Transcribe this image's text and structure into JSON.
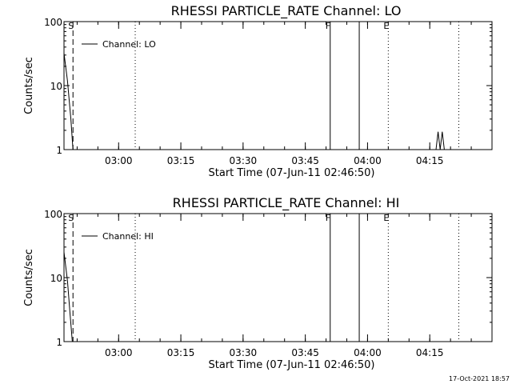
{
  "footer_stamp": "17-Oct-2021 18:57",
  "chart_data": [
    {
      "type": "line",
      "title": "RHESSI PARTICLE_RATE Channel: LO",
      "xlabel": "Start Time (07-Jun-11 02:46:50)",
      "ylabel": "Counts/sec",
      "y_scale": "log",
      "ylim": [
        1,
        100
      ],
      "y_ticks": [
        1,
        10,
        100
      ],
      "y_tick_labels": [
        "1",
        "10",
        "100"
      ],
      "xlim": [
        "02:46:50",
        "04:30:00"
      ],
      "x_ticks": [
        "03:00",
        "03:15",
        "03:30",
        "03:45",
        "04:00",
        "04:15"
      ],
      "legend": {
        "position": "top-left",
        "entries": [
          "Channel: LO"
        ]
      },
      "markers": [
        {
          "time": "02:49:00",
          "label": "S",
          "style": "dashed"
        },
        {
          "time": "03:04:00",
          "label": "",
          "style": "dotted"
        },
        {
          "time": "03:51:00",
          "label": "F",
          "style": "solid"
        },
        {
          "time": "03:58:00",
          "label": "",
          "style": "solid"
        },
        {
          "time": "04:05:00",
          "label": "E",
          "style": "dotted"
        },
        {
          "time": "04:22:00",
          "label": "",
          "style": "dotted"
        }
      ],
      "series": [
        {
          "name": "Channel: LO",
          "segments": [
            [
              {
                "x": "02:46:50",
                "y": 32
              },
              {
                "x": "02:47:40",
                "y": 12
              },
              {
                "x": "02:48:30",
                "y": 3
              },
              {
                "x": "02:49:00",
                "y": 1
              }
            ],
            [
              {
                "x": "04:16:30",
                "y": 1
              },
              {
                "x": "04:17:00",
                "y": 1.9
              },
              {
                "x": "04:17:30",
                "y": 1
              },
              {
                "x": "04:18:00",
                "y": 1.9
              },
              {
                "x": "04:18:30",
                "y": 1
              }
            ]
          ]
        }
      ]
    },
    {
      "type": "line",
      "title": "RHESSI PARTICLE_RATE Channel: HI",
      "xlabel": "Start Time (07-Jun-11 02:46:50)",
      "ylabel": "Counts/sec",
      "y_scale": "log",
      "ylim": [
        1,
        100
      ],
      "y_ticks": [
        1,
        10,
        100
      ],
      "y_tick_labels": [
        "1",
        "10",
        "100"
      ],
      "xlim": [
        "02:46:50",
        "04:30:00"
      ],
      "x_ticks": [
        "03:00",
        "03:15",
        "03:30",
        "03:45",
        "04:00",
        "04:15"
      ],
      "legend": {
        "position": "top-left",
        "entries": [
          "Channel: HI"
        ]
      },
      "markers": [
        {
          "time": "02:49:00",
          "label": "S",
          "style": "dashed"
        },
        {
          "time": "03:04:00",
          "label": "",
          "style": "dotted"
        },
        {
          "time": "03:51:00",
          "label": "F",
          "style": "solid"
        },
        {
          "time": "03:58:00",
          "label": "",
          "style": "solid"
        },
        {
          "time": "04:05:00",
          "label": "E",
          "style": "dotted"
        },
        {
          "time": "04:22:00",
          "label": "",
          "style": "dotted"
        }
      ],
      "series": [
        {
          "name": "Channel: HI",
          "segments": [
            [
              {
                "x": "02:46:50",
                "y": 25
              },
              {
                "x": "02:47:40",
                "y": 9
              },
              {
                "x": "02:48:20",
                "y": 2.5
              },
              {
                "x": "02:48:50",
                "y": 1
              }
            ]
          ]
        }
      ]
    }
  ]
}
